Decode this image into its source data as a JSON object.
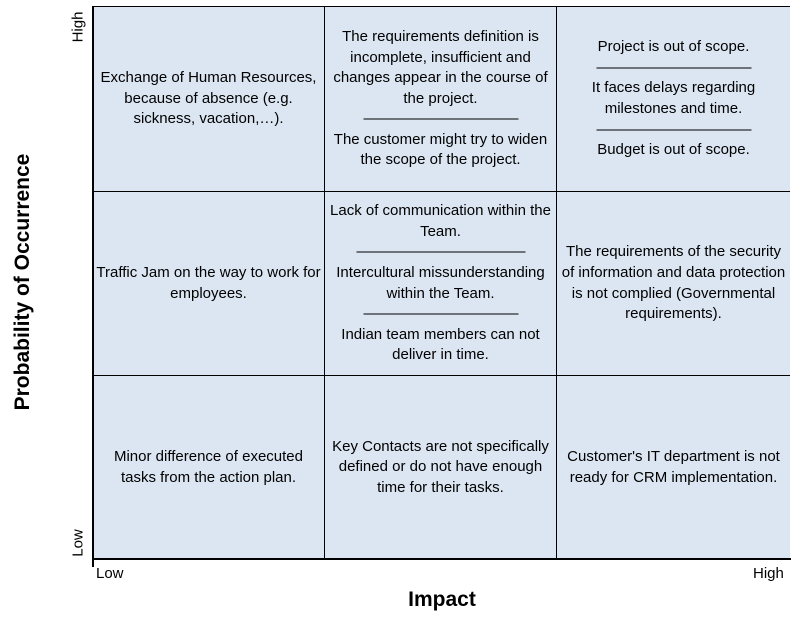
{
  "axes": {
    "y_title": "Probability of Occurrence",
    "y_high": "High",
    "y_low": "Low",
    "x_title": "Impact",
    "x_low": "Low",
    "x_high": "High"
  },
  "colors": {
    "cell_fill": "#dce6f2",
    "grid_lines": "#000000"
  },
  "matrix": {
    "high_low": [
      "Exchange of Human Resources, because of absence (e.g. sickness, vacation,…)."
    ],
    "high_medium": [
      "The requirements definition is incomplete, insufficient and changes appear in the course of the project.",
      "———————————",
      "The customer might try to widen the scope of the project."
    ],
    "high_high": [
      "Project is out of scope.",
      "———————————",
      "It faces delays regarding milestones and time.",
      "———————————",
      "Budget is out of scope."
    ],
    "medium_low": [
      "Traffic Jam on the way to work for employees."
    ],
    "medium_medium": [
      "Lack of communication within the Team.",
      "————————————",
      "Intercultural missunderstanding within the Team.",
      "———————————",
      "Indian team members can not deliver in time."
    ],
    "medium_high": [
      "The requirements of the security of information and data protection is not complied (Governmental requirements)."
    ],
    "low_low": [
      "Minor difference of executed tasks from the action plan."
    ],
    "low_medium": [
      "Key Contacts are not specifically defined or do not have enough time for their tasks."
    ],
    "low_high": [
      "Customer's IT department is not ready for CRM implementation."
    ]
  }
}
